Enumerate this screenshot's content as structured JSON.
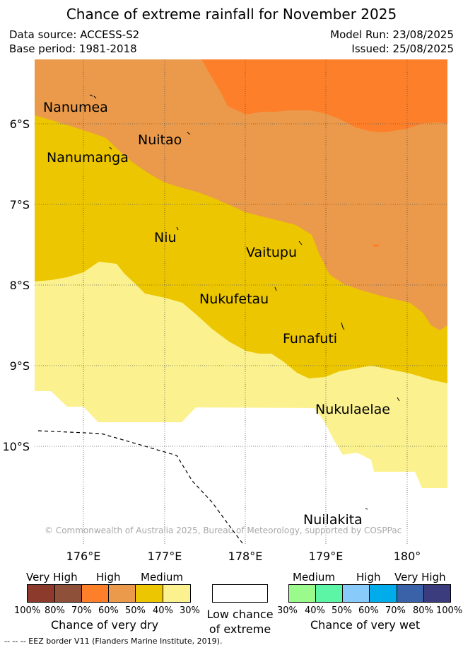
{
  "title": "Chance of extreme rainfall for November 2025",
  "meta": {
    "data_source": "Data source: ACCESS-S2",
    "base_period": "Base period: 1981-2018",
    "model_run": "Model Run: 23/08/2025",
    "issued": "Issued: 25/08/2025"
  },
  "map": {
    "lat_labels": [
      "6°S",
      "7°S",
      "8°S",
      "9°S",
      "10°S"
    ],
    "lon_labels": [
      "176°E",
      "177°E",
      "178°E",
      "179°E",
      "180°"
    ],
    "places": [
      "Nanumea",
      "Nuitao",
      "Nanumanga",
      "Niu",
      "Vaitupu",
      "Nukufetau",
      "Funafuti",
      "Nukulaelae",
      "Nuilakita"
    ],
    "copyright": "© Commonwealth of Australia 2025, Bureau of Meteorology, supported by COSPPac",
    "colors": {
      "high_dry": "#fd7f2a",
      "medium_high_dry": "#ea9a4a",
      "medium_dry": "#ecc600",
      "low_medium_dry": "#fbf28f",
      "low": "#ffffff"
    }
  },
  "legend": {
    "dry": {
      "headers": [
        "Very High",
        "High",
        "Medium"
      ],
      "percent_labels": [
        "100%",
        "80%",
        "70%",
        "60%",
        "50%",
        "40%",
        "30%"
      ],
      "colors": [
        "#8b3a2c",
        "#8f5039",
        "#fd7f2a",
        "#ea9a4a",
        "#ecc600",
        "#fbf28f"
      ],
      "caption": "Chance of very dry"
    },
    "low": {
      "caption_line1": "Low chance",
      "caption_line2": "of extreme"
    },
    "wet": {
      "headers": [
        "Medium",
        "High",
        "Very High"
      ],
      "percent_labels": [
        "30%",
        "40%",
        "50%",
        "60%",
        "70%",
        "80%",
        "100%"
      ],
      "colors": [
        "#9bfa8c",
        "#5cf5a5",
        "#88cbfa",
        "#00adea",
        "#3a62a8",
        "#3a3c7e"
      ],
      "caption": "Chance of very wet"
    }
  },
  "footnote": "-- -- -- EEZ border V11 (Flanders Marine Institute, 2019)."
}
